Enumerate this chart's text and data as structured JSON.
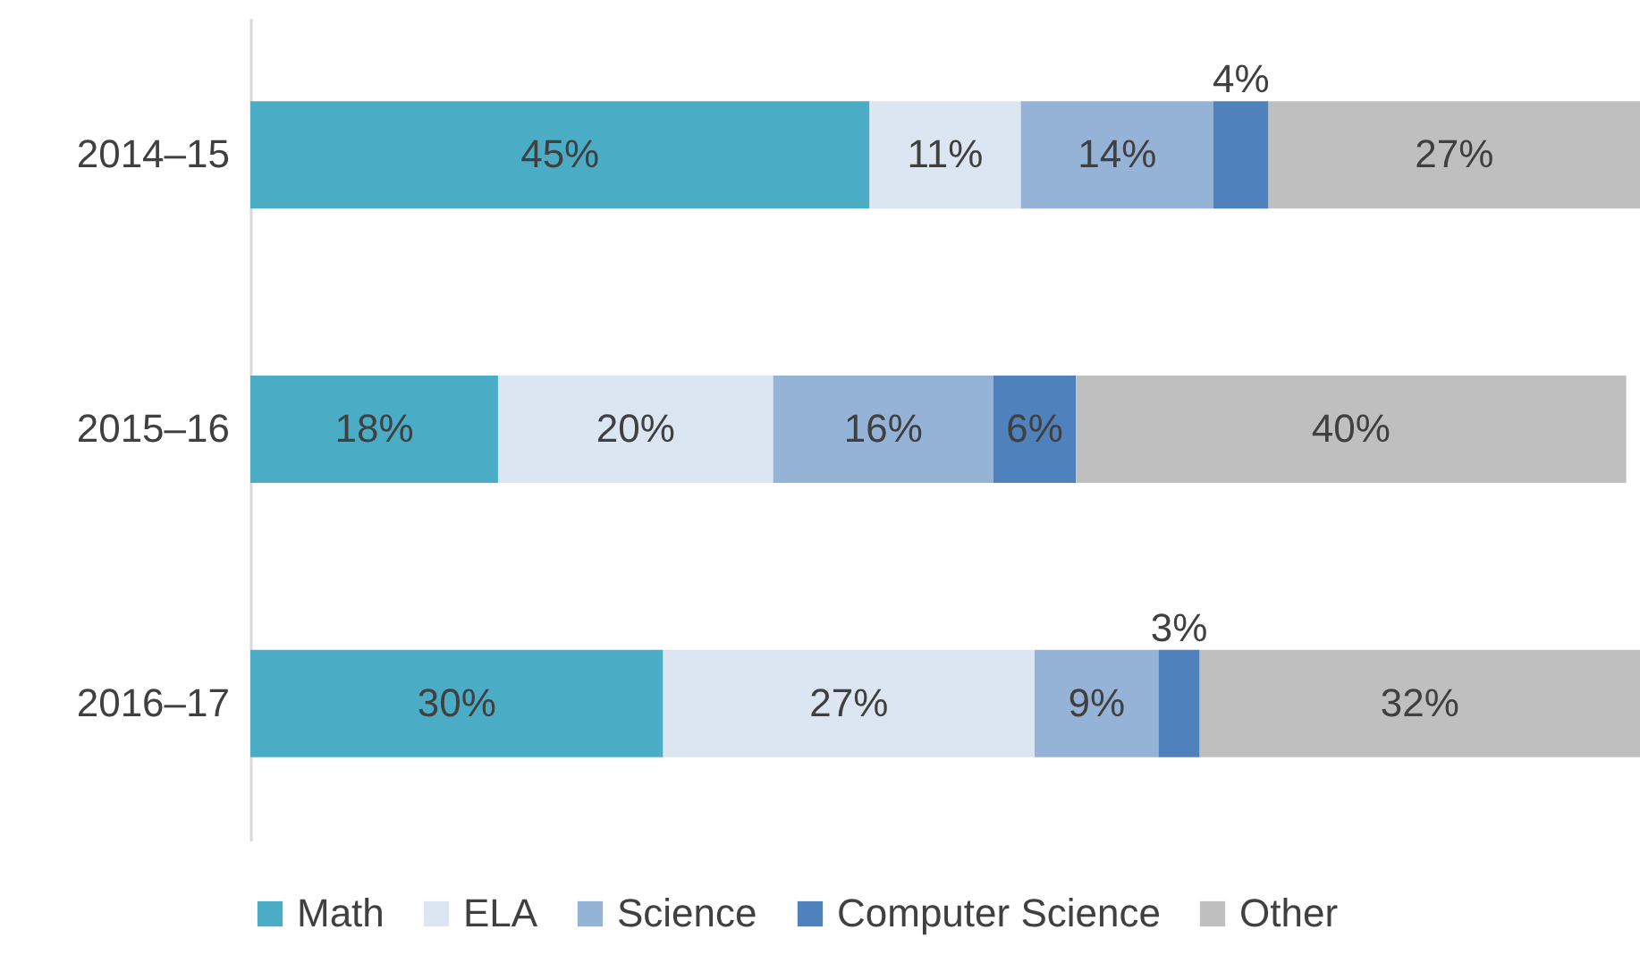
{
  "chart_data": {
    "type": "bar",
    "orientation": "horizontal",
    "stacked": true,
    "legend": "bottom",
    "categories": [
      "2014–15",
      "2015–16",
      "2016–17"
    ],
    "series": [
      {
        "name": "Math",
        "color": "#4bacc6",
        "values": [
          45,
          18,
          30
        ],
        "value_labels": [
          "45%",
          "18%",
          "30%"
        ]
      },
      {
        "name": "ELA",
        "color": "#dce6f2",
        "values": [
          11,
          20,
          27
        ],
        "value_labels": [
          "11%",
          "20%",
          "27%"
        ]
      },
      {
        "name": "Science",
        "color": "#95b3d7",
        "values": [
          14,
          16,
          9
        ],
        "value_labels": [
          "14%",
          "16%",
          "9%"
        ]
      },
      {
        "name": "Computer Science",
        "color": "#4f81bd",
        "values": [
          4,
          6,
          3
        ],
        "value_labels": [
          "4%",
          "6%",
          "3%"
        ]
      },
      {
        "name": "Other",
        "color": "#bfbfbf",
        "values": [
          27,
          40,
          32
        ],
        "value_labels": [
          "27%",
          "40%",
          "32%"
        ]
      }
    ]
  }
}
